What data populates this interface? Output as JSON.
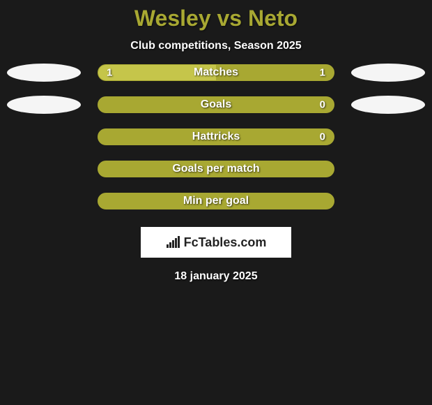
{
  "title": "Wesley vs Neto",
  "subtitle": "Club competitions, Season 2025",
  "chart": {
    "type": "comparison-bars",
    "background_color": "#1a1a1a",
    "accent_color": "#a8a832",
    "fill_left_color": "#c5c54a",
    "text_color": "#ffffff",
    "bar_border_radius": 12,
    "rows": [
      {
        "label": "Matches",
        "left_value": "1",
        "right_value": "1",
        "left_pct": 50,
        "show_left_marker": true,
        "show_right_marker": true
      },
      {
        "label": "Goals",
        "left_value": "",
        "right_value": "0",
        "left_pct": 0,
        "show_left_marker": true,
        "show_right_marker": true
      },
      {
        "label": "Hattricks",
        "left_value": "",
        "right_value": "0",
        "left_pct": 0,
        "show_left_marker": false,
        "show_right_marker": false
      },
      {
        "label": "Goals per match",
        "left_value": "",
        "right_value": "",
        "left_pct": 0,
        "show_left_marker": false,
        "show_right_marker": false
      },
      {
        "label": "Min per goal",
        "left_value": "",
        "right_value": "",
        "left_pct": 0,
        "show_left_marker": false,
        "show_right_marker": false
      }
    ]
  },
  "brand": "FcTables.com",
  "date": "18 january 2025"
}
